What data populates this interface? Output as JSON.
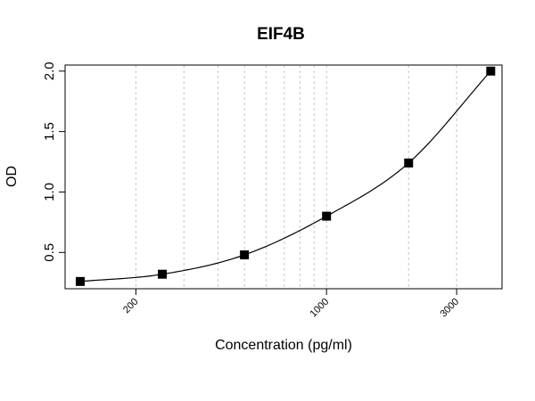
{
  "chart_data": {
    "type": "scatter",
    "title": "EIF4B",
    "xlabel": "Concentration (pg/ml)",
    "ylabel": "OD",
    "x_scale": "log",
    "xlim": [
      110,
      4400
    ],
    "ylim": [
      0.2,
      2.05
    ],
    "x_ticks": [
      200,
      1000,
      3000
    ],
    "x_tick_labels": [
      "200",
      "1000",
      "3000"
    ],
    "y_ticks": [
      0.5,
      1.0,
      1.5,
      2.0
    ],
    "y_tick_labels": [
      "0.5",
      "1.0",
      "1.5",
      "2.0"
    ],
    "x_gridlines": [
      200,
      300,
      400,
      500,
      600,
      700,
      800,
      900,
      1000,
      2000,
      3000
    ],
    "grid": "vertical dashed",
    "legend": "none",
    "points": [
      {
        "x": 125,
        "y": 0.26
      },
      {
        "x": 250,
        "y": 0.32
      },
      {
        "x": 500,
        "y": 0.48
      },
      {
        "x": 1000,
        "y": 0.8
      },
      {
        "x": 2000,
        "y": 1.24
      },
      {
        "x": 4000,
        "y": 2.0
      }
    ],
    "colors": {
      "points": "#000000",
      "curve": "#000000",
      "grid": "#c8c8c8"
    }
  }
}
